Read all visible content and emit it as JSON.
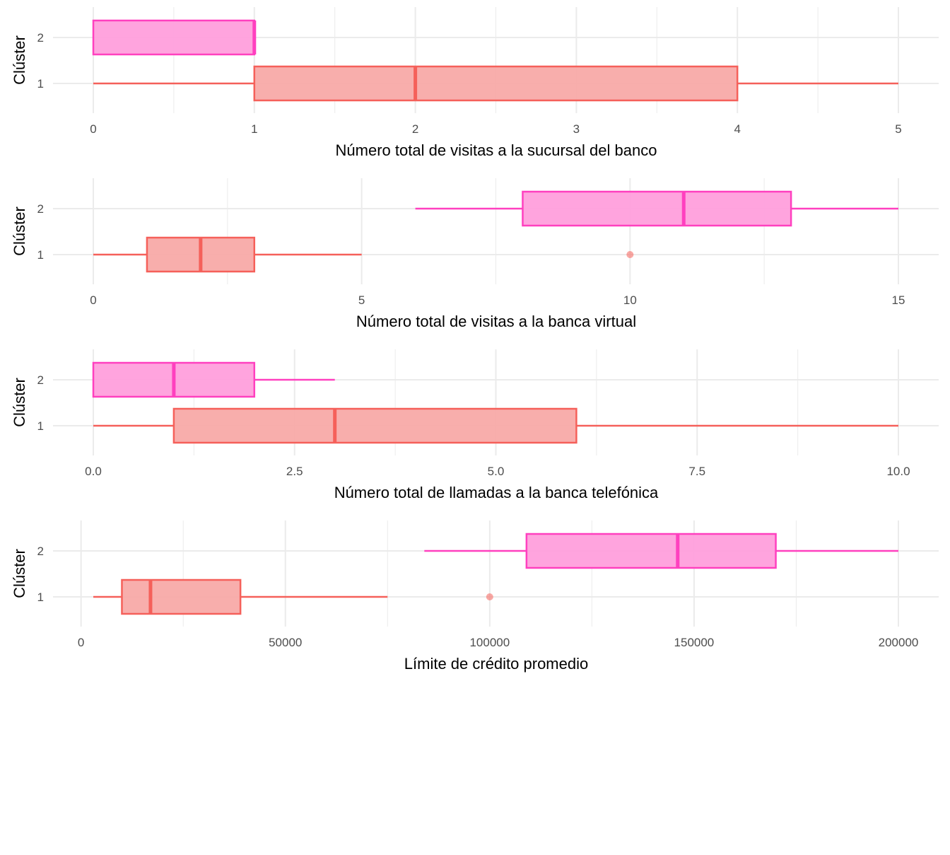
{
  "chart_data": [
    {
      "type": "boxplot",
      "orientation": "horizontal",
      "xlabel": "Número total de visitas a la sucursal del banco",
      "ylabel": "Clúster",
      "categories": [
        "1",
        "2"
      ],
      "xticks": [
        0,
        1,
        2,
        3,
        4,
        5
      ],
      "xtick_labels": [
        "0",
        "1",
        "2",
        "3",
        "4",
        "5"
      ],
      "minor_step": 0.5,
      "grid": true,
      "series": [
        {
          "category": "1",
          "whisker_low": 0,
          "q1": 1,
          "median": 2,
          "q3": 4,
          "whisker_high": 5,
          "outliers": []
        },
        {
          "category": "2",
          "whisker_low": 0,
          "q1": 0,
          "median": 1,
          "q3": 1,
          "whisker_high": 1,
          "outliers": []
        }
      ]
    },
    {
      "type": "boxplot",
      "orientation": "horizontal",
      "xlabel": "Número total de visitas a la banca virtual",
      "ylabel": "Clúster",
      "categories": [
        "1",
        "2"
      ],
      "xticks": [
        0,
        5,
        10,
        15
      ],
      "xtick_labels": [
        "0",
        "5",
        "10",
        "15"
      ],
      "minor_step": 2.5,
      "grid": true,
      "series": [
        {
          "category": "1",
          "whisker_low": 0,
          "q1": 1,
          "median": 2,
          "q3": 3,
          "whisker_high": 5,
          "outliers": [
            10
          ]
        },
        {
          "category": "2",
          "whisker_low": 6,
          "q1": 8,
          "median": 11,
          "q3": 13,
          "whisker_high": 15,
          "outliers": []
        }
      ]
    },
    {
      "type": "boxplot",
      "orientation": "horizontal",
      "xlabel": "Número total de llamadas a la banca telefónica",
      "ylabel": "Clúster",
      "categories": [
        "1",
        "2"
      ],
      "xticks": [
        0,
        2.5,
        5,
        7.5,
        10
      ],
      "xtick_labels": [
        "0.0",
        "2.5",
        "5.0",
        "7.5",
        "10.0"
      ],
      "minor_step": 1.25,
      "grid": true,
      "series": [
        {
          "category": "1",
          "whisker_low": 0,
          "q1": 1,
          "median": 3,
          "q3": 6,
          "whisker_high": 10,
          "outliers": []
        },
        {
          "category": "2",
          "whisker_low": 0,
          "q1": 0,
          "median": 1,
          "q3": 2,
          "whisker_high": 3,
          "outliers": []
        }
      ]
    },
    {
      "type": "boxplot",
      "orientation": "horizontal",
      "xlabel": "Límite de crédito promedio",
      "ylabel": "Clúster",
      "categories": [
        "1",
        "2"
      ],
      "xticks": [
        0,
        50000,
        100000,
        150000,
        200000
      ],
      "xtick_labels": [
        "0",
        "50000",
        "100000",
        "150000",
        "200000"
      ],
      "minor_step": 25000,
      "grid": true,
      "series": [
        {
          "category": "1",
          "whisker_low": 3000,
          "q1": 10000,
          "median": 17000,
          "q3": 39000,
          "whisker_high": 75000,
          "outliers": [
            100000
          ]
        },
        {
          "category": "2",
          "whisker_low": 84000,
          "q1": 109000,
          "median": 146000,
          "q3": 170000,
          "whisker_high": 200000,
          "outliers": []
        }
      ]
    }
  ],
  "colors": {
    "cluster_1_stroke": "#F5605A",
    "cluster_1_fill": "#F8AAA8",
    "cluster_2_stroke": "#FF40BF",
    "cluster_2_fill": "#FF9FDC",
    "grid": "#EBEBEB"
  }
}
